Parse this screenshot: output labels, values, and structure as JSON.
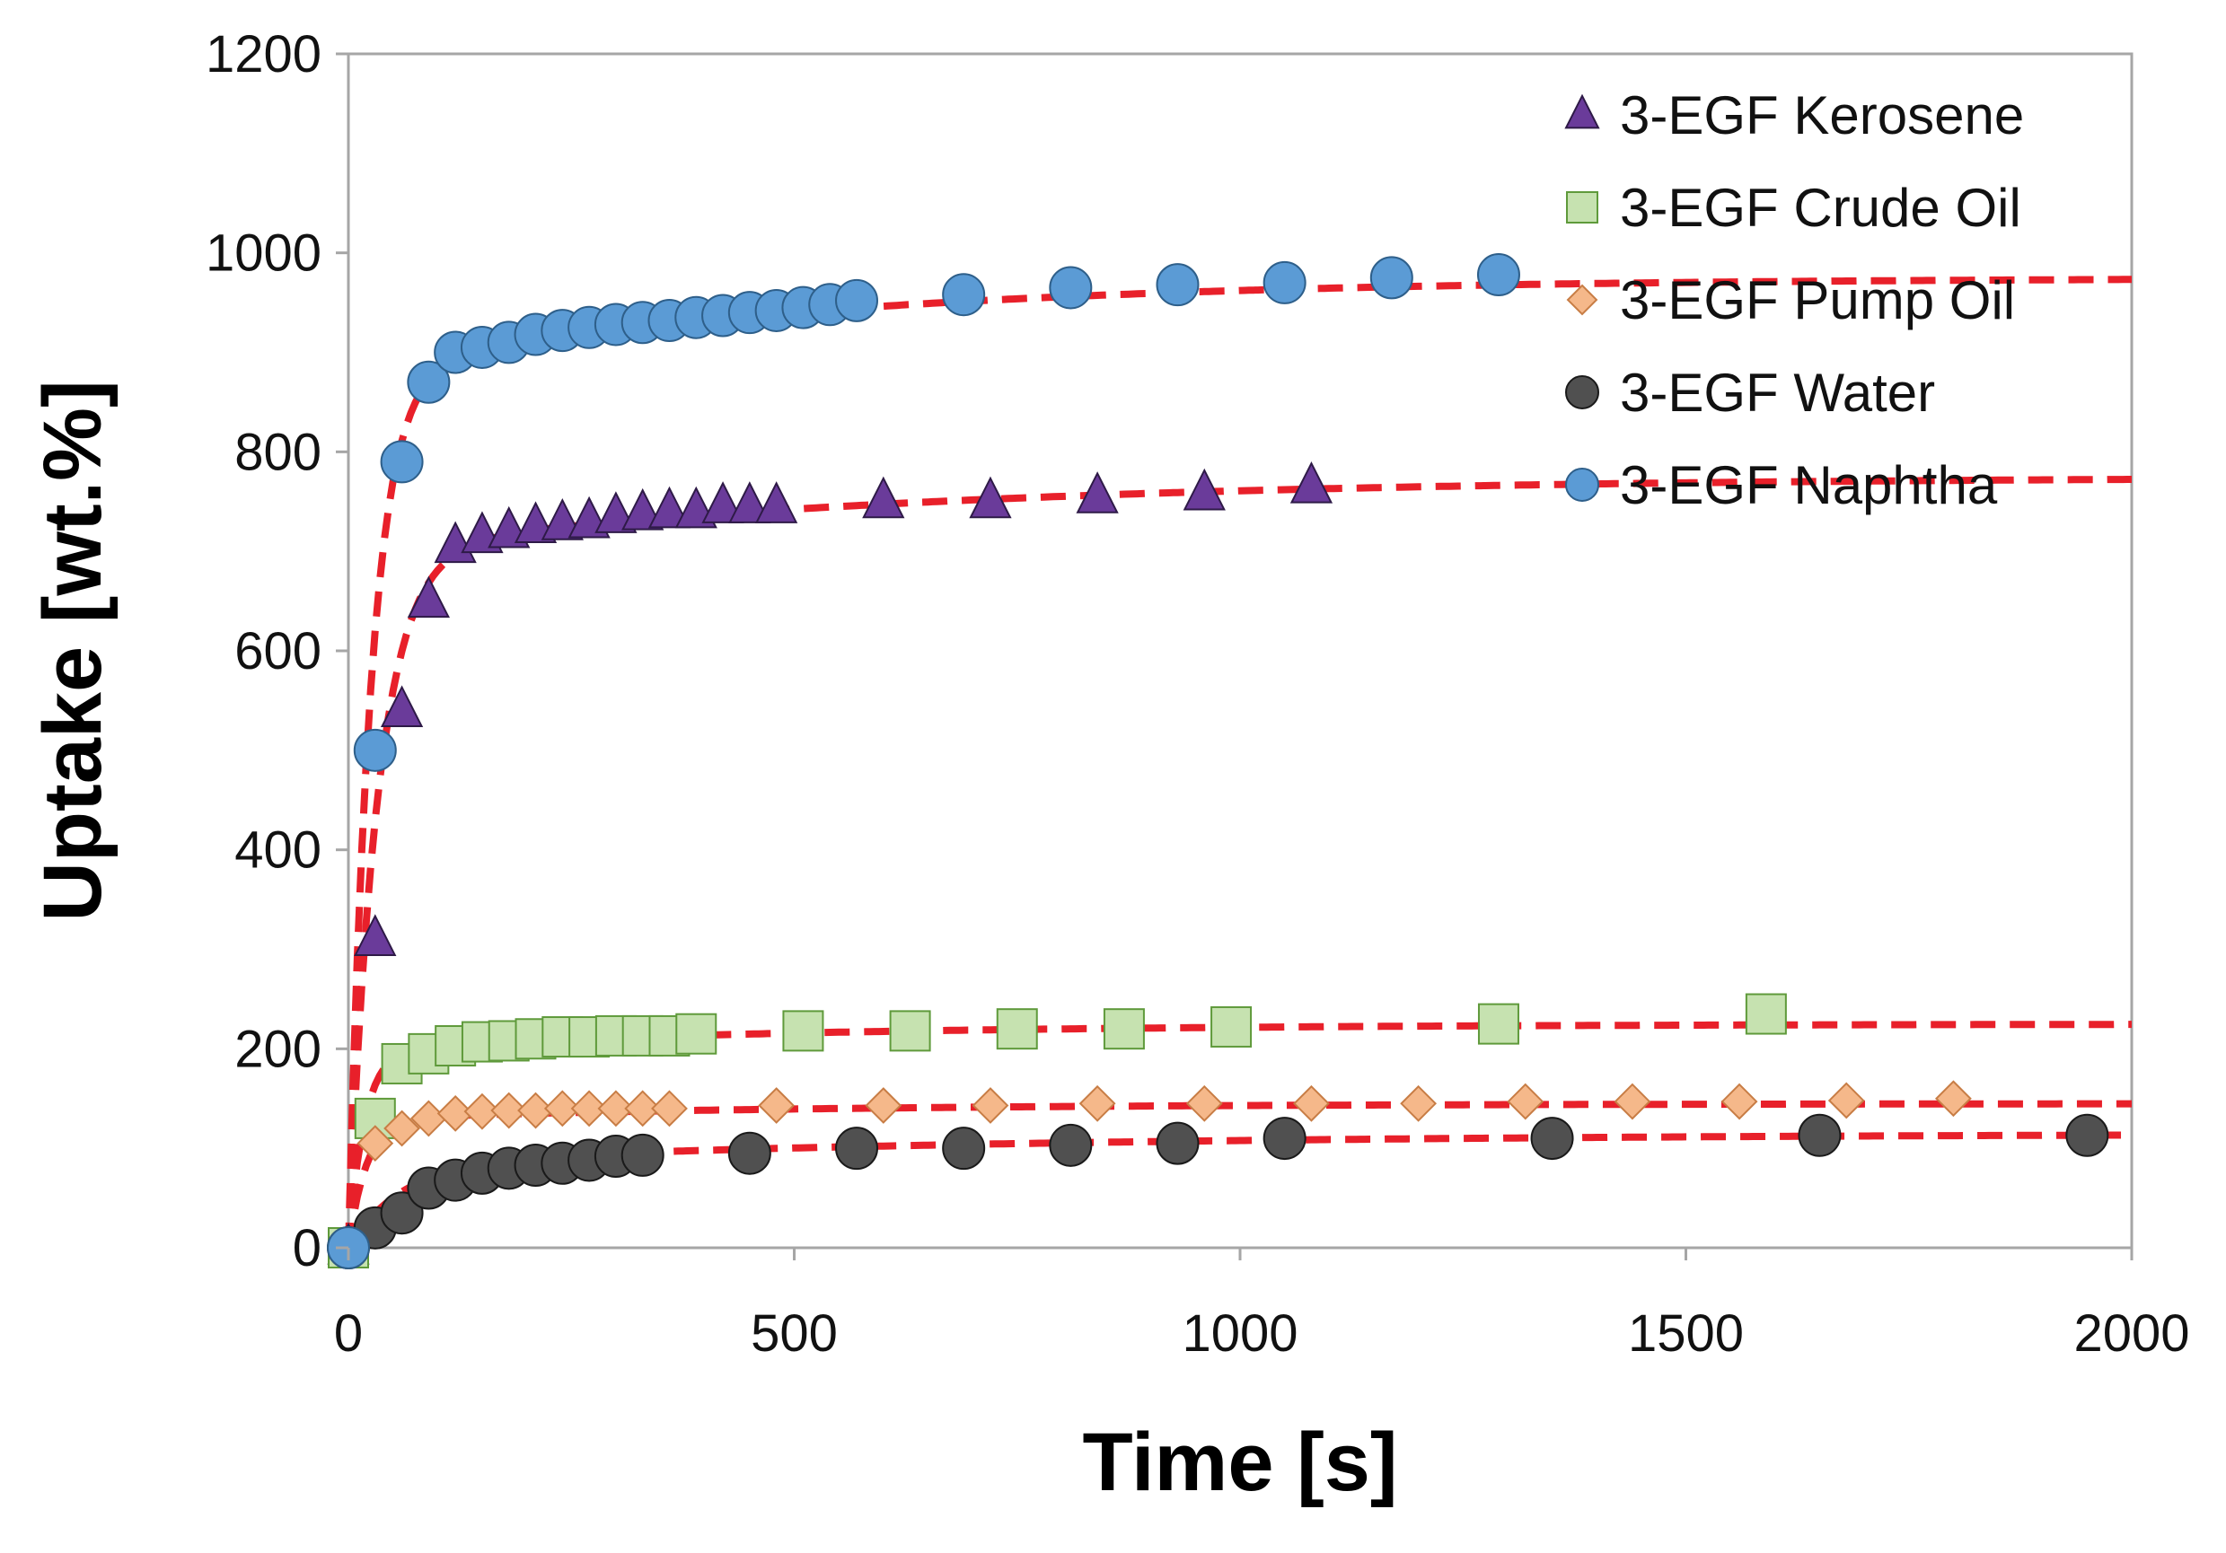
{
  "chart_data": {
    "type": "scatter",
    "xlabel": "Time [s]",
    "ylabel": "Uptake [wt.%]",
    "xlim": [
      0,
      2000
    ],
    "ylim": [
      0,
      1200
    ],
    "xticks": [
      0,
      500,
      1000,
      1500,
      2000
    ],
    "yticks": [
      0,
      200,
      400,
      600,
      800,
      1000,
      1200
    ],
    "grid": false,
    "legend_position": "top-right",
    "fit_color": "#e8202a",
    "series": [
      {
        "name": "3-EGF Kerosene",
        "marker": "triangle",
        "fill": "#6a3b9a",
        "stroke": "#2e1a47",
        "x": [
          0,
          30,
          60,
          90,
          120,
          150,
          180,
          210,
          240,
          270,
          300,
          330,
          360,
          390,
          420,
          450,
          480,
          600,
          720,
          840,
          960,
          1080
        ],
        "y": [
          0,
          310,
          540,
          650,
          705,
          715,
          720,
          725,
          728,
          730,
          735,
          738,
          740,
          740,
          745,
          745,
          745,
          750,
          750,
          755,
          758,
          765
        ],
        "fit": {
          "y0": 0,
          "a1": 700,
          "tau1": 32,
          "a2": 75,
          "tau2": 600
        }
      },
      {
        "name": "3-EGF Crude Oil",
        "marker": "square",
        "fill": "#c6e2b0",
        "stroke": "#5f9a3b",
        "x": [
          0,
          30,
          60,
          90,
          120,
          150,
          180,
          210,
          240,
          270,
          300,
          330,
          360,
          390,
          510,
          630,
          750,
          870,
          990,
          1290,
          1590
        ],
        "y": [
          0,
          130,
          185,
          195,
          203,
          207,
          208,
          210,
          212,
          212,
          213,
          213,
          213,
          215,
          218,
          218,
          220,
          220,
          222,
          225,
          235
        ],
        "fit": {
          "y0": 0,
          "a1": 200,
          "tau1": 18,
          "a2": 25,
          "tau2": 500
        }
      },
      {
        "name": "3-EGF Pump Oil",
        "marker": "diamond",
        "fill": "#f5b88a",
        "stroke": "#c87d45",
        "x": [
          0,
          30,
          60,
          90,
          120,
          150,
          180,
          210,
          240,
          270,
          300,
          330,
          360,
          480,
          600,
          720,
          840,
          960,
          1080,
          1200,
          1320,
          1440,
          1560,
          1680,
          1800
        ],
        "y": [
          0,
          105,
          120,
          130,
          135,
          137,
          138,
          138,
          140,
          140,
          140,
          140,
          140,
          143,
          143,
          143,
          145,
          145,
          145,
          145,
          147,
          147,
          147,
          148,
          150
        ],
        "fit": {
          "y0": 0,
          "a1": 130,
          "tau1": 20,
          "a2": 15,
          "tau2": 500
        }
      },
      {
        "name": "3-EGF Water",
        "marker": "circle",
        "fill": "#505050",
        "stroke": "#1a1a1a",
        "x": [
          0,
          30,
          60,
          90,
          120,
          150,
          180,
          210,
          240,
          270,
          300,
          330,
          450,
          570,
          690,
          810,
          930,
          1050,
          1350,
          1650,
          1950
        ],
        "y": [
          0,
          20,
          35,
          60,
          68,
          75,
          80,
          83,
          85,
          88,
          92,
          93,
          95,
          100,
          100,
          103,
          105,
          110,
          110,
          113,
          113
        ],
        "fit": {
          "y0": 0,
          "a1": 85,
          "tau1": 60,
          "a2": 30,
          "tau2": 700
        }
      },
      {
        "name": "3-EGF Naphtha",
        "marker": "circle",
        "fill": "#5b9bd5",
        "stroke": "#2e5f8a",
        "x": [
          0,
          30,
          60,
          90,
          120,
          150,
          180,
          210,
          240,
          270,
          300,
          330,
          360,
          390,
          420,
          450,
          480,
          510,
          540,
          570,
          690,
          810,
          930,
          1050,
          1170,
          1290
        ],
        "y": [
          0,
          500,
          790,
          870,
          900,
          905,
          910,
          918,
          922,
          925,
          928,
          930,
          932,
          935,
          937,
          940,
          942,
          945,
          948,
          952,
          958,
          965,
          968,
          970,
          975,
          978
        ],
        "fit": {
          "y0": 0,
          "a1": 880,
          "tau1": 25,
          "a2": 95,
          "tau2": 500
        }
      }
    ]
  }
}
